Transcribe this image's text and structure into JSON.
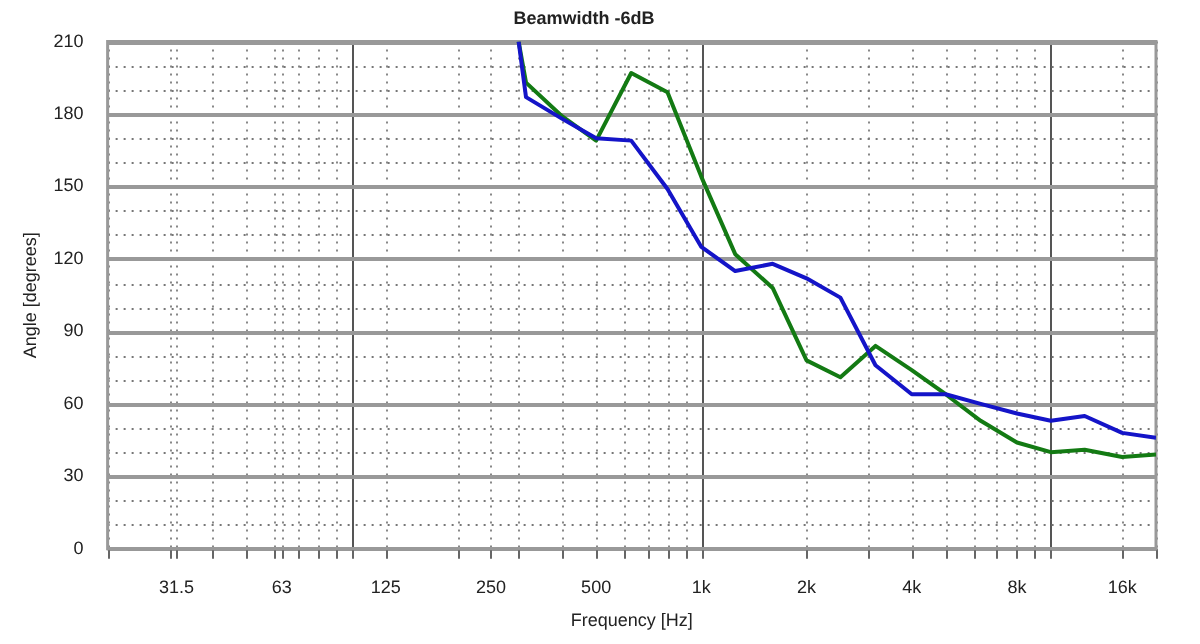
{
  "chart_data": {
    "type": "line",
    "title": "Beamwidth -6dB",
    "xlabel": "Frequency [Hz]",
    "ylabel": "Angle [degrees]",
    "x": [
      300,
      315,
      400,
      500,
      630,
      800,
      1000,
      1250,
      1600,
      2000,
      2500,
      3150,
      4000,
      5000,
      6300,
      8000,
      10000,
      12500,
      16000,
      20000
    ],
    "series": [
      {
        "color": "#1414c8",
        "values": [
          210,
          187,
          178,
          170,
          169,
          149,
          125,
          115,
          118,
          112,
          104,
          76,
          64,
          64,
          60,
          56,
          53,
          55,
          48,
          46
        ]
      },
      {
        "color": "#137a13",
        "values": [
          210,
          193,
          179,
          169,
          197,
          189,
          154,
          122,
          108,
          78,
          71,
          84,
          74,
          64,
          53,
          44,
          40,
          41,
          38,
          39
        ]
      }
    ],
    "log": "x",
    "xlim": [
      20,
      20000
    ],
    "xticks": [
      {
        "value": 20,
        "label": null
      },
      {
        "value": 30,
        "label": null
      },
      31.5,
      {
        "value": 40,
        "label": null
      },
      {
        "value": 50,
        "label": null
      },
      {
        "value": 60,
        "label": null
      },
      63,
      {
        "value": 70,
        "label": null
      },
      {
        "value": 80,
        "label": null
      },
      {
        "value": 90,
        "label": null
      },
      {
        "value": 100,
        "label": null
      },
      125,
      {
        "value": 200,
        "label": null
      },
      250,
      {
        "value": 300,
        "label": null
      },
      {
        "value": 400,
        "label": null
      },
      500,
      {
        "value": 600,
        "label": null
      },
      {
        "value": 700,
        "label": null
      },
      {
        "value": 800,
        "label": null
      },
      {
        "value": 900,
        "label": null
      },
      {
        "value": 1000,
        "label": "1k"
      },
      {
        "value": 2000,
        "label": "2k"
      },
      {
        "value": 3000,
        "label": null
      },
      {
        "value": 4000,
        "label": "4k"
      },
      {
        "value": 5000,
        "label": null
      },
      {
        "value": 6000,
        "label": null
      },
      {
        "value": 7000,
        "label": null
      },
      {
        "value": 8000,
        "label": "8k"
      },
      {
        "value": 9000,
        "label": null
      },
      {
        "value": 10000,
        "label": null
      },
      {
        "value": 16000,
        "label": "16k"
      },
      {
        "value": 20000,
        "label": null
      }
    ],
    "ylim": [
      0,
      210
    ],
    "yticks": [
      0,
      {
        "value": 10,
        "label": null
      },
      {
        "value": 20,
        "label": null
      },
      30,
      {
        "value": 40,
        "label": null
      },
      {
        "value": 50,
        "label": null
      },
      60,
      {
        "value": 70,
        "label": null
      },
      {
        "value": 80,
        "label": null
      },
      90,
      {
        "value": 100,
        "label": null
      },
      {
        "value": 110,
        "label": null
      },
      120,
      {
        "value": 130,
        "label": null
      },
      {
        "value": 140,
        "label": null
      },
      150,
      {
        "value": 160,
        "label": null
      },
      {
        "value": 170,
        "label": null
      },
      180,
      {
        "value": 190,
        "label": null
      },
      {
        "value": 200,
        "label": null
      },
      210
    ],
    "grid": true,
    "legend": false,
    "marker": "none",
    "line_style": "solid"
  }
}
